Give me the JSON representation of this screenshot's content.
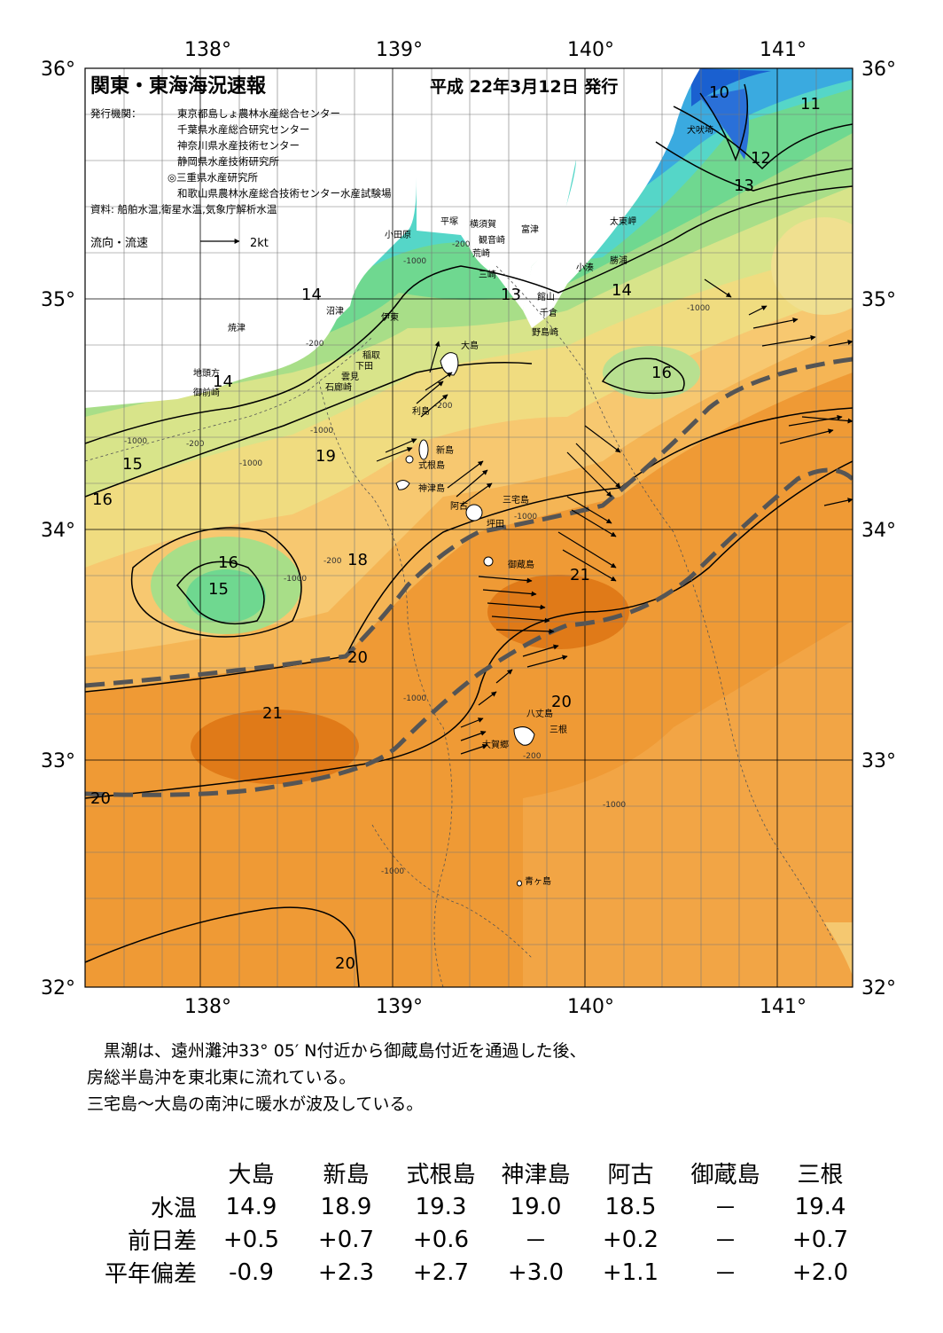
{
  "map": {
    "title": "関東・東海海況速報",
    "date": "平成 22年3月12日 発行",
    "publisher_label": "発行機関：",
    "publishers": [
      "東京都島しょ農林水産総合センター",
      "千葉県水産総合研究センター",
      "神奈川県水産技術センター",
      "静岡県水産技術研究所",
      "◎三重県水産研究所",
      "和歌山県農林水産総合技術センター水産試験場"
    ],
    "source": "資料: 船舶水温,衛星水温,気象庁解析水温",
    "flow_legend": {
      "label": "流向・流速",
      "speed": "2kt"
    },
    "lon_ticks": [
      "138°",
      "139°",
      "140°",
      "141°"
    ],
    "lat_ticks": [
      "36°",
      "35°",
      "34°",
      "33°",
      "32°"
    ],
    "isotherm_labels": [
      "10",
      "11",
      "12",
      "13",
      "13",
      "14",
      "14",
      "14",
      "15",
      "15",
      "16",
      "16",
      "16",
      "18",
      "19",
      "20",
      "20",
      "20",
      "20",
      "21",
      "21"
    ],
    "depth_labels": [
      "-1000",
      "-200",
      "-1000",
      "-200",
      "-200",
      "-1000",
      "-1000",
      "-200",
      "-1000",
      "-200",
      "-1000",
      "-1000",
      "-1000",
      "-200",
      "-1000",
      "-1000"
    ],
    "places": [
      "犬吠埼",
      "太東岬",
      "勝浦",
      "小湊",
      "富津",
      "横須賀",
      "観音崎",
      "平塚",
      "小田原",
      "荒崎",
      "三崎",
      "館山",
      "千倉",
      "野島崎",
      "沼津",
      "伊東",
      "稲取",
      "下田",
      "雲見",
      "石廊崎",
      "焼津",
      "地頭方",
      "御前崎",
      "大島",
      "利島",
      "新島",
      "式根島",
      "神津島",
      "三宅島",
      "阿古",
      "坪田",
      "御蔵島",
      "八丈島",
      "大賀郷",
      "三根",
      "青ヶ島"
    ]
  },
  "summary": [
    "　黒潮は、遠州灘沖33° 05′ N付近から御蔵島付近を通過した後、",
    "房総半島沖を東北東に流れている。",
    "三宅島～大島の南沖に暖水が波及している。"
  ],
  "table": {
    "stations": [
      "大島",
      "新島",
      "式根島",
      "神津島",
      "阿古",
      "御蔵島",
      "三根"
    ],
    "rows": [
      {
        "label": "水温",
        "values": [
          "14.9",
          "18.9",
          "19.3",
          "19.0",
          "18.5",
          "－",
          "19.4"
        ]
      },
      {
        "label": "前日差",
        "values": [
          "+0.5",
          "+0.7",
          "+0.6",
          "－",
          "+0.2",
          "－",
          "+0.7"
        ]
      },
      {
        "label": "平年偏差",
        "values": [
          "-0.9",
          "+2.3",
          "+2.7",
          "+3.0",
          "+1.1",
          "－",
          "+2.0"
        ]
      }
    ]
  }
}
